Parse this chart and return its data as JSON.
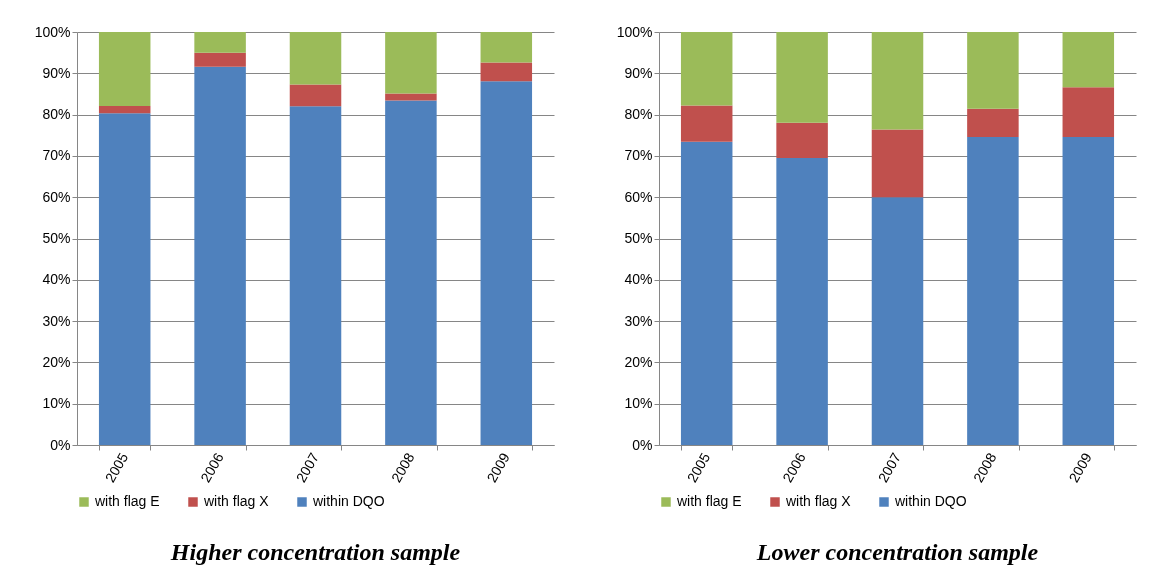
{
  "chart_data": [
    {
      "type": "bar",
      "title": "Higher concentration sample",
      "categories": [
        "2005",
        "2006",
        "2007",
        "2008",
        "2009"
      ],
      "stacked": true,
      "ylim": [
        0,
        100
      ],
      "yticks": [
        {
          "value": 0,
          "label": "0%"
        },
        {
          "value": 10,
          "label": "10%"
        },
        {
          "value": 20,
          "label": "20%"
        },
        {
          "value": 30,
          "label": "30%"
        },
        {
          "value": 40,
          "label": "40%"
        },
        {
          "value": 50,
          "label": "50%"
        },
        {
          "value": 60,
          "label": "60%"
        },
        {
          "value": 70,
          "label": "70%"
        },
        {
          "value": 80,
          "label": "80%"
        },
        {
          "value": 90,
          "label": "90%"
        },
        {
          "value": 100,
          "label": "100%"
        }
      ],
      "grid": "y",
      "legend": "bottom",
      "series": [
        {
          "name": "within DQO",
          "color": "#4f81bd",
          "values": [
            80.3,
            91.6,
            82.0,
            83.4,
            88.1
          ]
        },
        {
          "name": "with flag X",
          "color": "#c0504d",
          "values": [
            1.8,
            3.4,
            5.3,
            1.7,
            4.5
          ]
        },
        {
          "name": "with flag E",
          "color": "#9bbb59",
          "values": [
            17.9,
            5.0,
            12.7,
            14.9,
            7.4
          ]
        }
      ]
    },
    {
      "type": "bar",
      "title": "Lower concentration sample",
      "categories": [
        "2005",
        "2006",
        "2007",
        "2008",
        "2009"
      ],
      "stacked": true,
      "ylim": [
        0,
        100
      ],
      "yticks": [
        {
          "value": 0,
          "label": "0%"
        },
        {
          "value": 10,
          "label": "10%"
        },
        {
          "value": 20,
          "label": "20%"
        },
        {
          "value": 30,
          "label": "30%"
        },
        {
          "value": 40,
          "label": "40%"
        },
        {
          "value": 50,
          "label": "50%"
        },
        {
          "value": 60,
          "label": "60%"
        },
        {
          "value": 70,
          "label": "70%"
        },
        {
          "value": 80,
          "label": "80%"
        },
        {
          "value": 90,
          "label": "90%"
        },
        {
          "value": 100,
          "label": "100%"
        }
      ],
      "grid": "y",
      "legend": "bottom",
      "series": [
        {
          "name": "within DQO",
          "color": "#4f81bd",
          "values": [
            73.4,
            69.5,
            60.0,
            74.6,
            74.6
          ]
        },
        {
          "name": "with flag X",
          "color": "#c0504d",
          "values": [
            8.8,
            8.5,
            16.4,
            6.8,
            12.0
          ]
        },
        {
          "name": "with flag E",
          "color": "#9bbb59",
          "values": [
            17.8,
            22.0,
            23.6,
            18.6,
            13.4
          ]
        }
      ]
    }
  ]
}
